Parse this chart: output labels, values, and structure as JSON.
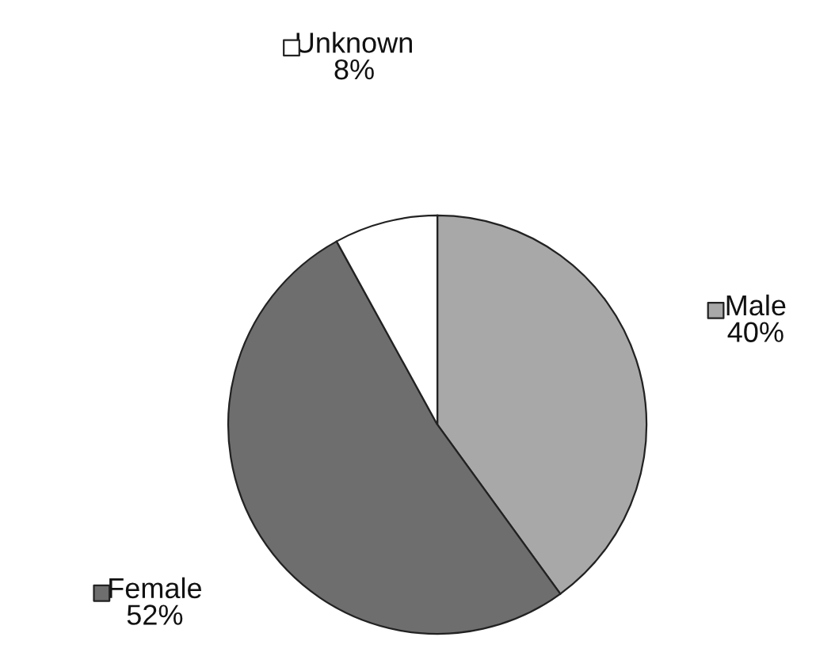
{
  "chart_data": {
    "type": "pie",
    "categories": [
      "Male",
      "Female",
      "Unknown"
    ],
    "values": [
      40,
      52,
      8
    ],
    "colors": [
      "#a8a8a8",
      "#6e6e6e",
      "#ffffff"
    ],
    "value_labels": [
      "40%",
      "52%",
      "8%"
    ],
    "legend": "top"
  }
}
